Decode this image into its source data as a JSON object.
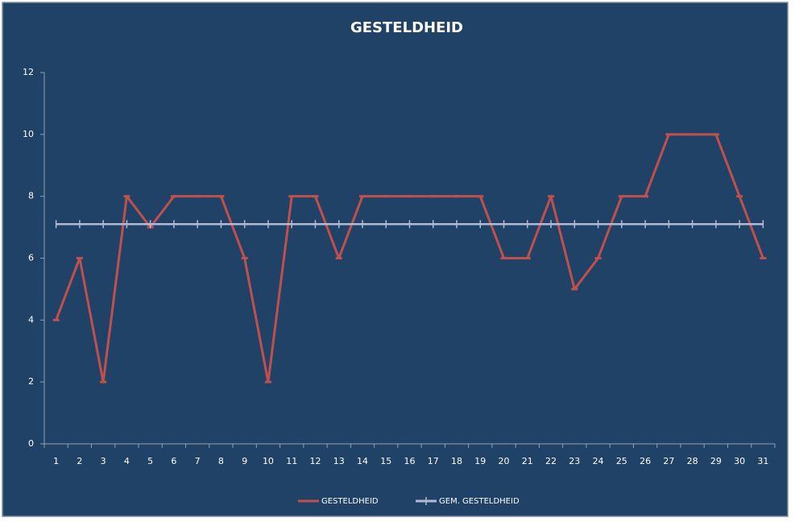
{
  "chart_data": {
    "type": "line",
    "title": "GESTELDHEID",
    "categories": [
      "1",
      "2",
      "3",
      "4",
      "5",
      "6",
      "7",
      "8",
      "9",
      "10",
      "11",
      "12",
      "13",
      "14",
      "15",
      "16",
      "17",
      "18",
      "19",
      "20",
      "21",
      "22",
      "23",
      "24",
      "25",
      "26",
      "27",
      "28",
      "29",
      "30",
      "31"
    ],
    "series": [
      {
        "name": "GESTELDHEID",
        "color": "#c0504d",
        "values": [
          4,
          6,
          2,
          8,
          7,
          8,
          8,
          8,
          6,
          2,
          8,
          8,
          6,
          8,
          8,
          8,
          8,
          8,
          8,
          6,
          6,
          8,
          5,
          6,
          8,
          8,
          10,
          10,
          10,
          8,
          6
        ]
      },
      {
        "name": "GEM. GESTELDHEID",
        "color": "#b3b9d6",
        "values": [
          7.1,
          7.1,
          7.1,
          7.1,
          7.1,
          7.1,
          7.1,
          7.1,
          7.1,
          7.1,
          7.1,
          7.1,
          7.1,
          7.1,
          7.1,
          7.1,
          7.1,
          7.1,
          7.1,
          7.1,
          7.1,
          7.1,
          7.1,
          7.1,
          7.1,
          7.1,
          7.1,
          7.1,
          7.1,
          7.1,
          7.1
        ]
      }
    ],
    "ylim": [
      0,
      12
    ],
    "yticks": [
      0,
      2,
      4,
      6,
      8,
      10,
      12
    ],
    "grid": false,
    "legend": "bottom"
  }
}
